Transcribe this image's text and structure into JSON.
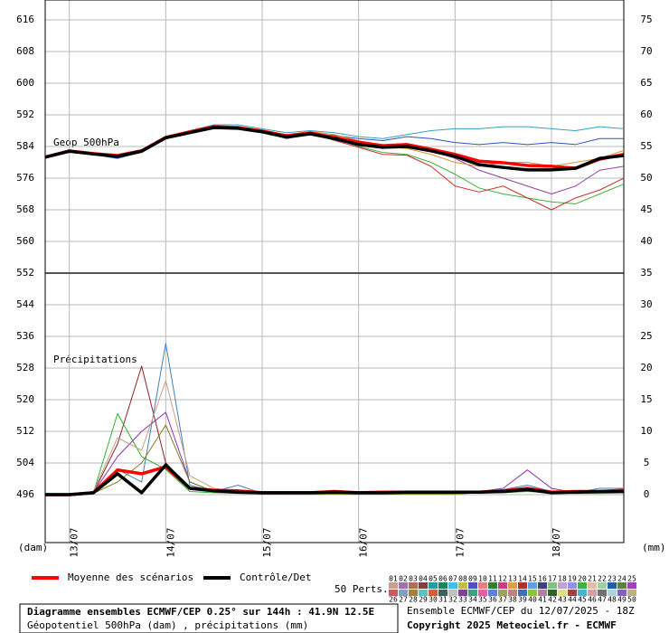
{
  "chart_data": {
    "type": "line",
    "x": [
      0,
      6,
      12,
      18,
      24,
      30,
      36,
      42,
      48,
      54,
      60,
      66,
      72,
      78,
      84,
      90,
      96,
      102,
      108,
      114,
      120,
      126,
      132,
      138,
      144
    ],
    "xlim": [
      0,
      144
    ],
    "xticks": [
      {
        "value": 6,
        "label": "13/07"
      },
      {
        "value": 30,
        "label": "14/07"
      },
      {
        "value": 54,
        "label": "15/07"
      },
      {
        "value": 78,
        "label": "16/07"
      },
      {
        "value": 102,
        "label": "17/07"
      },
      {
        "value": 126,
        "label": "18/07"
      }
    ],
    "ylim": [
      483.89,
      621.03
    ],
    "yticks": [
      496,
      504,
      512,
      520,
      528,
      536,
      544,
      552,
      560,
      568,
      576,
      584,
      592,
      600,
      608,
      616
    ],
    "y2lim": [
      -7.57,
      78.14
    ],
    "y2ticks": [
      0,
      5,
      10,
      15,
      20,
      25,
      30,
      35,
      40,
      45,
      50,
      55,
      60,
      65,
      70,
      75
    ],
    "y_label": "(dam)",
    "y2_label": "(mm)",
    "grid": true,
    "annotations": [
      "Geop 500hPa",
      "Précipitations"
    ],
    "series": [
      {
        "color": "#3aa0b8",
        "values": [
          581.3,
          583,
          582.2,
          581.5,
          583,
          586.5,
          588,
          589.5,
          589.5,
          588.5,
          587.5,
          588,
          587.5,
          586.5,
          586,
          587,
          588,
          588.5,
          588.5,
          589,
          589,
          588.5,
          588,
          589,
          588.5
        ]
      },
      {
        "color": "#40b040",
        "values": [
          581.3,
          582.8,
          582,
          581,
          582.5,
          586,
          587.5,
          589,
          588.5,
          587.5,
          586.5,
          587,
          586,
          584,
          582.5,
          582,
          580,
          577,
          573.5,
          572,
          571,
          570,
          569.5,
          572,
          574.5
        ]
      },
      {
        "color": "#d03030",
        "values": [
          581.3,
          582.9,
          582.2,
          581.8,
          583,
          586.2,
          587.8,
          589,
          588.7,
          587.8,
          586.8,
          587.5,
          585.5,
          583.8,
          582,
          581.8,
          579,
          574,
          572.5,
          574,
          571,
          568,
          571,
          573,
          576
        ]
      },
      {
        "color": "#3050c8",
        "values": [
          581.3,
          582.8,
          582,
          581,
          582.7,
          586,
          587.5,
          588.5,
          588.6,
          588,
          586,
          587,
          586.8,
          586,
          585.5,
          586.5,
          586,
          585,
          584.5,
          585,
          584.5,
          585,
          584.5,
          586,
          586
        ]
      },
      {
        "color": "#9040a0",
        "values": [
          581.3,
          583,
          582.3,
          582,
          583.2,
          586.3,
          588,
          589.2,
          588.9,
          588,
          587,
          587.5,
          586.5,
          585,
          584.5,
          584,
          583,
          581,
          578,
          576,
          574,
          572,
          574,
          578,
          579
        ]
      },
      {
        "color": "#e09030",
        "values": [
          581.3,
          582.9,
          582.1,
          581.3,
          582.8,
          586.1,
          587.6,
          588.8,
          588.9,
          588.2,
          587,
          587.8,
          587,
          585.5,
          584,
          583.5,
          582,
          580,
          579,
          580,
          580,
          579,
          580,
          581,
          583
        ]
      },
      {
        "name": "Moyenne des scénarios",
        "color": "#ff0000",
        "values": [
          581.3,
          582.9,
          582.2,
          581.7,
          582.9,
          586.3,
          587.7,
          589,
          588.8,
          587.9,
          586.7,
          587.4,
          586.3,
          585.1,
          584.2,
          584.5,
          583.3,
          582,
          580.3,
          579.9,
          579.2,
          579,
          578.5,
          580.8,
          582
        ]
      },
      {
        "name": "Contrôle/Det",
        "color": "#000000",
        "values": [
          581.3,
          582.8,
          582.1,
          581.5,
          582.8,
          586.2,
          587.5,
          588.8,
          588.6,
          587.7,
          586.4,
          587.2,
          586,
          584.5,
          583.8,
          584,
          582.9,
          581.5,
          579.4,
          578.7,
          578.1,
          578.1,
          578.5,
          581,
          581.7
        ]
      },
      {
        "axis": "y2",
        "color": "#902020",
        "values": [
          0,
          0,
          0.3,
          8,
          20.3,
          5,
          1,
          0.5,
          0.3,
          0.1,
          0.1,
          0.1,
          0.2,
          0.1,
          0.1,
          0.1,
          0.1,
          0.2,
          0.5,
          0.5,
          1,
          0.3,
          0.3,
          0.3,
          0.5
        ]
      },
      {
        "axis": "y2",
        "color": "#4080c0",
        "values": [
          0,
          0,
          0.3,
          4,
          2,
          23.9,
          1.5,
          0.5,
          1.5,
          0.2,
          0.1,
          0.1,
          0.2,
          0.1,
          0.1,
          0.1,
          0.2,
          0.2,
          0.5,
          0.8,
          1.5,
          0.5,
          0.3,
          1,
          1
        ]
      },
      {
        "axis": "y2",
        "color": "#30b030",
        "values": [
          0,
          0,
          0.3,
          12.8,
          6,
          4,
          0.5,
          0.3,
          0.2,
          0.1,
          0.1,
          0.1,
          0.1,
          0.1,
          0.1,
          0.1,
          0.1,
          0.1,
          0.3,
          0.3,
          0.5,
          0.3,
          0.2,
          0.2,
          0.3
        ]
      },
      {
        "axis": "y2",
        "color": "#9030b0",
        "values": [
          0,
          0,
          0.3,
          6,
          10,
          13,
          2,
          0.5,
          0.3,
          0.1,
          0.1,
          0.1,
          0.2,
          0.1,
          0.1,
          0.1,
          0.1,
          0.2,
          0.5,
          1,
          3.9,
          1,
          0.3,
          0.3,
          0.3
        ]
      },
      {
        "axis": "y2",
        "color": "#c8a080",
        "values": [
          0,
          0,
          0.5,
          9,
          7,
          18,
          3,
          1,
          0.5,
          0.2,
          0.1,
          0.1,
          0.2,
          0.1,
          0.1,
          0.1,
          0.1,
          0.2,
          0.3,
          0.5,
          0.8,
          0.3,
          0.3,
          0.5,
          0.5
        ]
      },
      {
        "axis": "y2",
        "color": "#808020",
        "values": [
          0,
          0,
          0.2,
          2,
          5,
          11,
          2,
          0.5,
          0.3,
          0.1,
          0.1,
          0.1,
          0.1,
          0.1,
          0.1,
          0.1,
          0.1,
          0.1,
          0.3,
          0.3,
          0.6,
          0.3,
          0.2,
          0.3,
          0.4
        ]
      },
      {
        "axis": "y2",
        "name": "Moyenne des scénarios",
        "color": "#ff0000",
        "values": [
          0,
          0,
          0.3,
          3.9,
          3.3,
          4.4,
          1,
          0.7,
          0.6,
          0.3,
          0.3,
          0.3,
          0.5,
          0.3,
          0.4,
          0.4,
          0.4,
          0.4,
          0.4,
          0.6,
          1,
          0.4,
          0.5,
          0.5,
          0.7
        ]
      },
      {
        "axis": "y2",
        "name": "Contrôle/Det",
        "color": "#000000",
        "values": [
          0,
          0,
          0.3,
          3.3,
          0.3,
          4.7,
          1,
          0.6,
          0.4,
          0.3,
          0.3,
          0.3,
          0.4,
          0.3,
          0.3,
          0.4,
          0.4,
          0.4,
          0.4,
          0.5,
          0.8,
          0.3,
          0.4,
          0.5,
          0.5
        ]
      }
    ],
    "members_label": "50 Perts.",
    "members": [
      {
        "name": "01",
        "color": "#c8a090"
      },
      {
        "name": "02",
        "color": "#a070b0"
      },
      {
        "name": "03",
        "color": "#b07050"
      },
      {
        "name": "04",
        "color": "#804040"
      },
      {
        "name": "05",
        "color": "#20a0a0"
      },
      {
        "name": "06",
        "color": "#208060"
      },
      {
        "name": "07",
        "color": "#40c0e0"
      },
      {
        "name": "08",
        "color": "#c0c040"
      },
      {
        "name": "09",
        "color": "#5050c0"
      },
      {
        "name": "10",
        "color": "#e08080"
      },
      {
        "name": "11",
        "color": "#308030"
      },
      {
        "name": "12",
        "color": "#c04080"
      },
      {
        "name": "13",
        "color": "#e0a040"
      },
      {
        "name": "14",
        "color": "#b03030"
      },
      {
        "name": "15",
        "color": "#60a0e0"
      },
      {
        "name": "16",
        "color": "#404080"
      },
      {
        "name": "17",
        "color": "#80c080"
      },
      {
        "name": "18",
        "color": "#c0a0d0"
      },
      {
        "name": "19",
        "color": "#9090f0"
      },
      {
        "name": "20",
        "color": "#40b040"
      },
      {
        "name": "21",
        "color": "#e0c0a0"
      },
      {
        "name": "22",
        "color": "#a0d0a0"
      },
      {
        "name": "23",
        "color": "#2060a0"
      },
      {
        "name": "24",
        "color": "#608040"
      },
      {
        "name": "25",
        "color": "#a040c0"
      },
      {
        "name": "26",
        "color": "#c06060"
      },
      {
        "name": "27",
        "color": "#80a0c0"
      },
      {
        "name": "28",
        "color": "#a08040"
      },
      {
        "name": "29",
        "color": "#60c0c0"
      },
      {
        "name": "30",
        "color": "#d06030"
      },
      {
        "name": "31",
        "color": "#406060"
      },
      {
        "name": "32",
        "color": "#c0c0c0"
      },
      {
        "name": "33",
        "color": "#8040a0"
      },
      {
        "name": "34",
        "color": "#40a080"
      },
      {
        "name": "35",
        "color": "#e060a0"
      },
      {
        "name": "36",
        "color": "#6080e0"
      },
      {
        "name": "37",
        "color": "#a0a060"
      },
      {
        "name": "38",
        "color": "#c08080"
      },
      {
        "name": "39",
        "color": "#4070b0"
      },
      {
        "name": "40",
        "color": "#90c040"
      },
      {
        "name": "41",
        "color": "#b080a0"
      },
      {
        "name": "42",
        "color": "#306030"
      },
      {
        "name": "43",
        "color": "#e0e080"
      },
      {
        "name": "44",
        "color": "#a04040"
      },
      {
        "name": "45",
        "color": "#50b0d0"
      },
      {
        "name": "46",
        "color": "#d0a0a0"
      },
      {
        "name": "47",
        "color": "#707070"
      },
      {
        "name": "48",
        "color": "#b0d0e0"
      },
      {
        "name": "49",
        "color": "#8060c0"
      },
      {
        "name": "50",
        "color": "#c0b080"
      }
    ],
    "footer": {
      "title": "Diagramme ensembles ECMWF/CEP 0.25° sur 144h : 41.9N 12.5E",
      "subtitle": "Géopotentiel 500hPa (dam) , précipitations (mm)",
      "run": "Ensemble ECMWF/CEP du 12/07/2025 - 18Z",
      "copyright": "Copyright 2025 Meteociel.fr - ECMWF"
    }
  }
}
